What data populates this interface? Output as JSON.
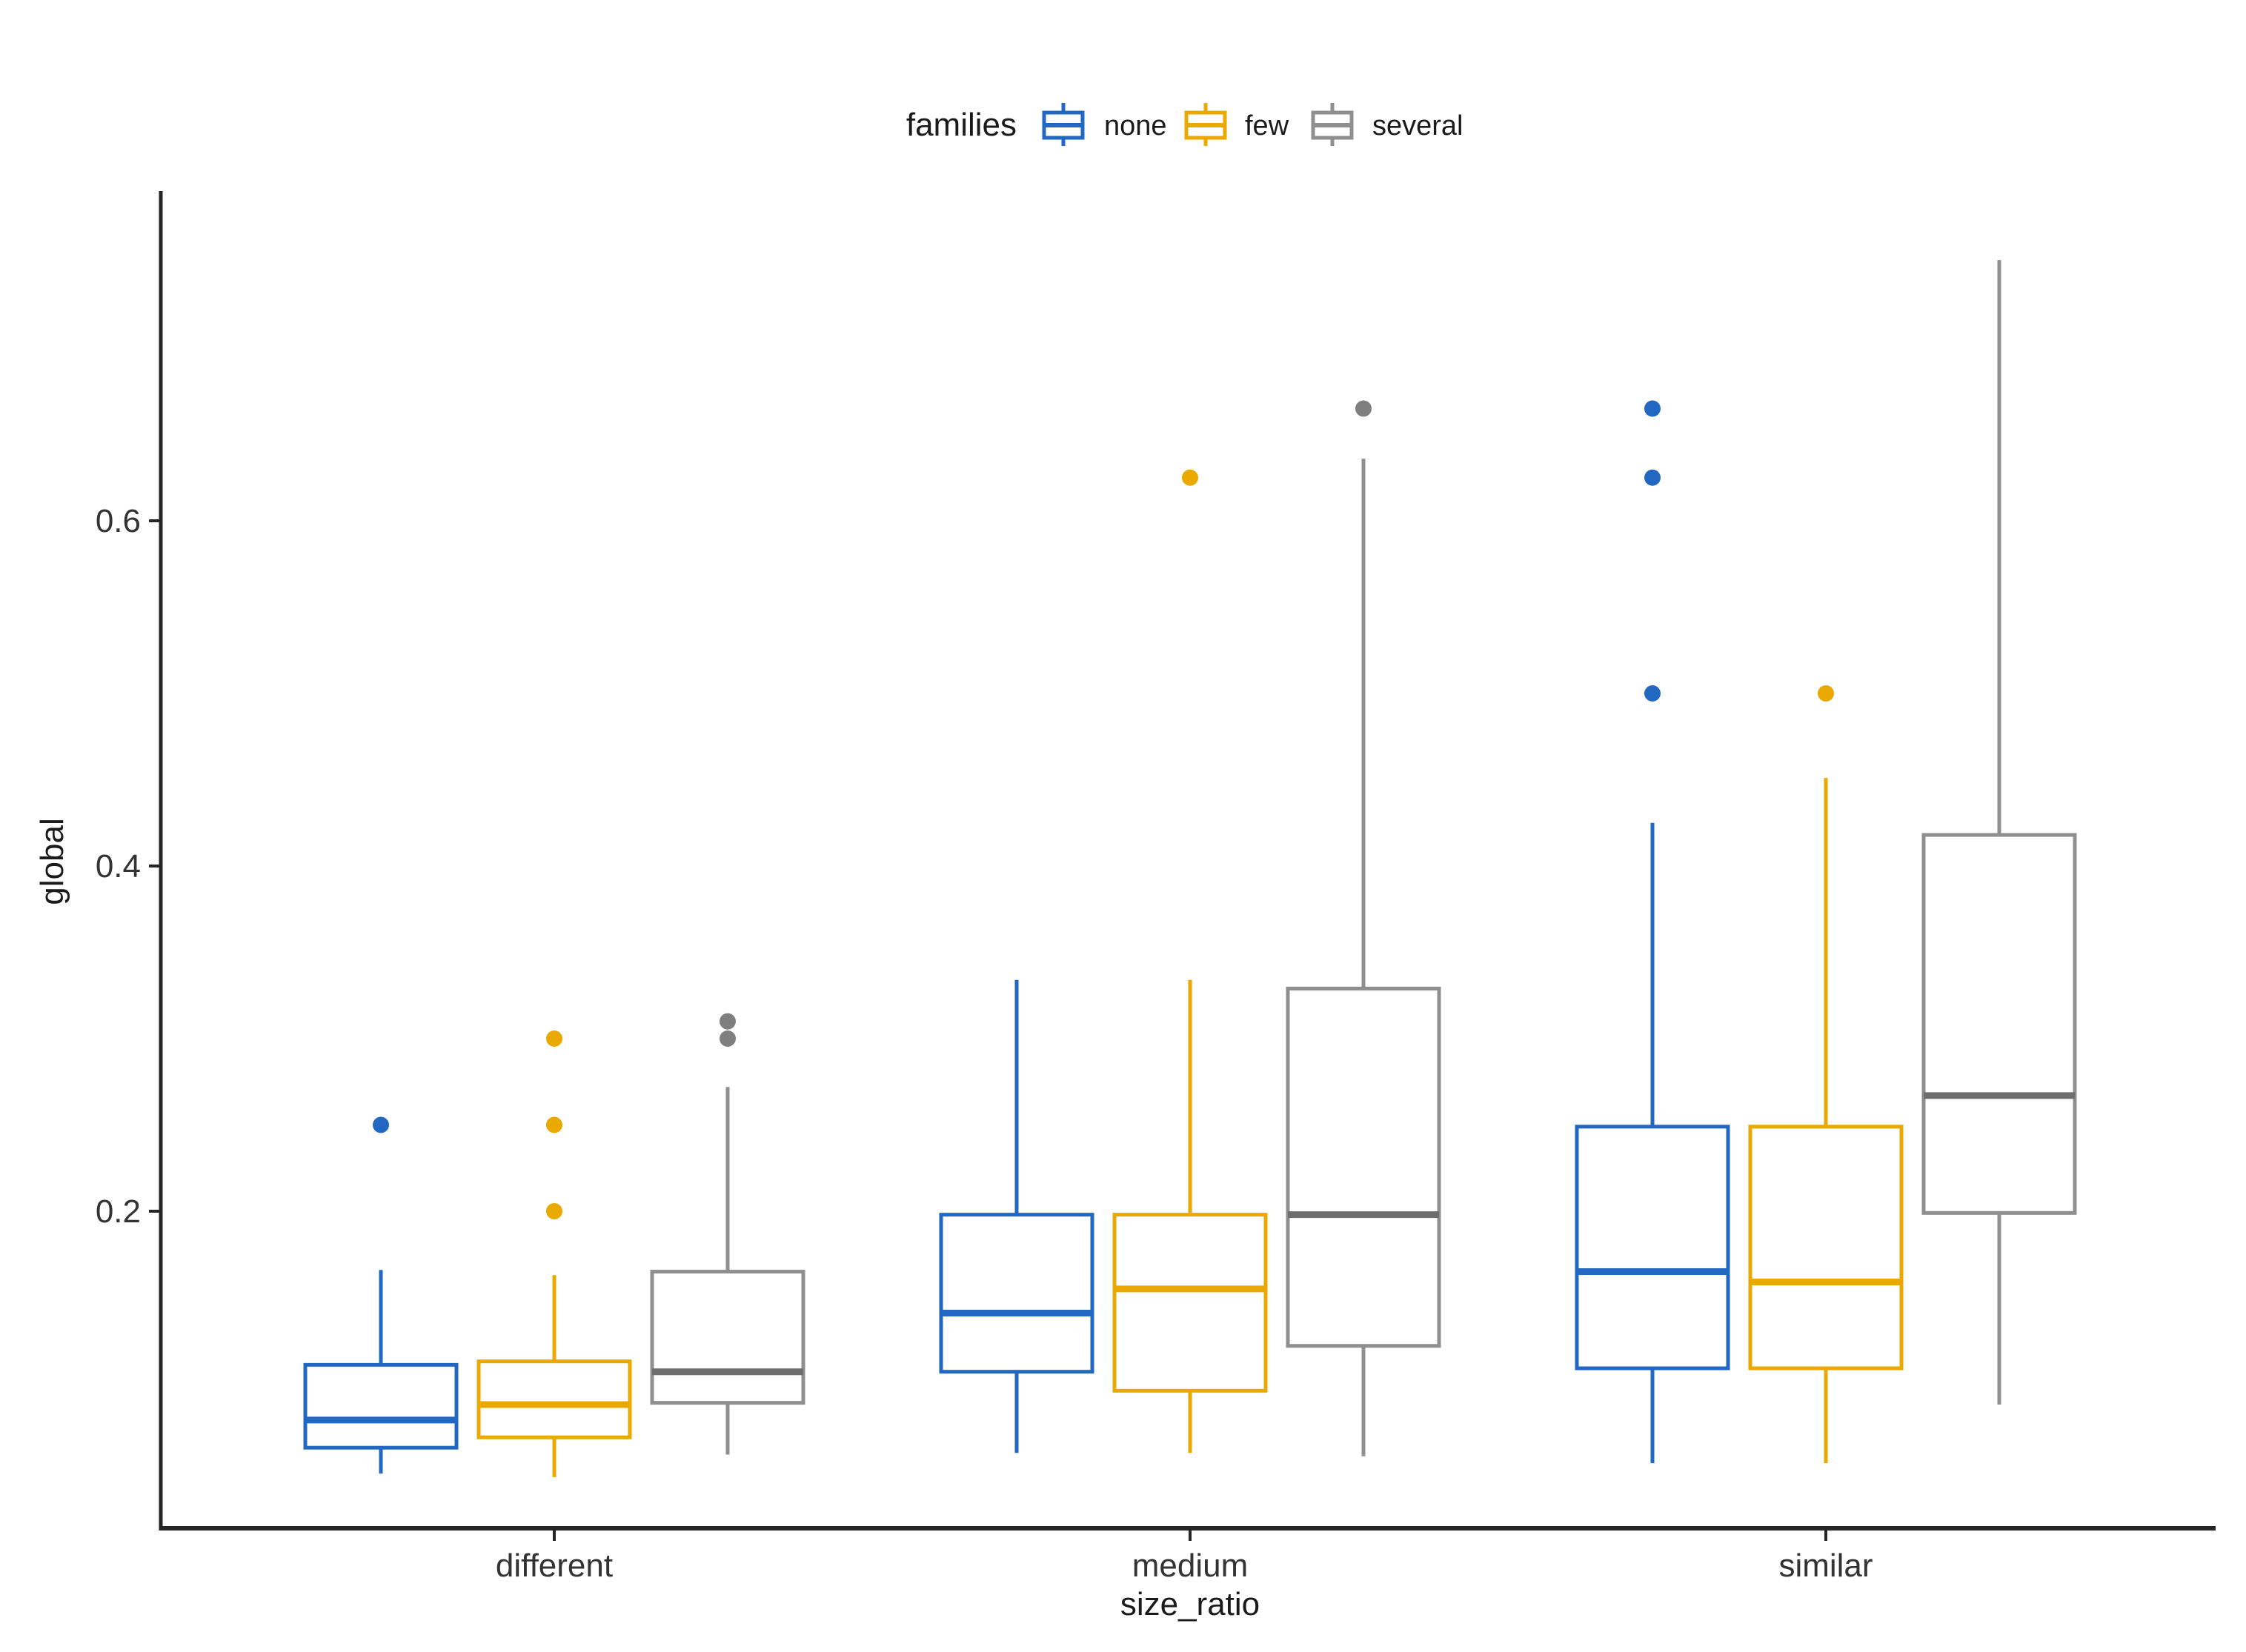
{
  "chart_data": {
    "type": "boxplot",
    "orientation": "vertical",
    "xlabel": "size_ratio",
    "ylabel": "global",
    "categories": [
      "different",
      "medium",
      "similar"
    ],
    "y_axis": {
      "tick_values": [
        0.2,
        0.4,
        0.6
      ],
      "tick_labels": [
        "0.2",
        "0.4",
        "0.6"
      ],
      "range": [
        0.016,
        0.79
      ],
      "grid": false
    },
    "legend": {
      "title": "families",
      "position": "top",
      "items": [
        {
          "label": "none",
          "color": "#2268C2"
        },
        {
          "label": "few",
          "color": "#E9A900"
        },
        {
          "label": "several",
          "color": "#8F8F8F"
        }
      ]
    },
    "series": [
      {
        "name": "none",
        "color": "#2268C2",
        "median_color": "#2268C2",
        "outlier_color": "#2268C2",
        "boxes": [
          {
            "category": "different",
            "whisker_low": 0.048,
            "q1": 0.063,
            "median": 0.079,
            "q3": 0.111,
            "whisker_high": 0.166,
            "outliers": [
              0.25
            ]
          },
          {
            "category": "medium",
            "whisker_low": 0.06,
            "q1": 0.107,
            "median": 0.141,
            "q3": 0.198,
            "whisker_high": 0.334,
            "outliers": []
          },
          {
            "category": "similar",
            "whisker_low": 0.054,
            "q1": 0.109,
            "median": 0.165,
            "q3": 0.249,
            "whisker_high": 0.425,
            "outliers": [
              0.5,
              0.625,
              0.665
            ]
          }
        ]
      },
      {
        "name": "few",
        "color": "#E9A900",
        "median_color": "#E9A900",
        "outlier_color": "#E9A900",
        "boxes": [
          {
            "category": "different",
            "whisker_low": 0.046,
            "q1": 0.069,
            "median": 0.088,
            "q3": 0.113,
            "whisker_high": 0.163,
            "outliers": [
              0.2,
              0.25,
              0.3
            ]
          },
          {
            "category": "medium",
            "whisker_low": 0.06,
            "q1": 0.096,
            "median": 0.155,
            "q3": 0.198,
            "whisker_high": 0.334,
            "outliers": [
              0.625
            ]
          },
          {
            "category": "similar",
            "whisker_low": 0.054,
            "q1": 0.109,
            "median": 0.159,
            "q3": 0.249,
            "whisker_high": 0.451,
            "outliers": [
              0.5
            ]
          }
        ]
      },
      {
        "name": "several",
        "color": "#8F8F8F",
        "median_color": "#6E6E6E",
        "outlier_color": "#7F7F7F",
        "boxes": [
          {
            "category": "different",
            "whisker_low": 0.059,
            "q1": 0.089,
            "median": 0.107,
            "q3": 0.165,
            "whisker_high": 0.272,
            "outliers": [
              0.3,
              0.31
            ]
          },
          {
            "category": "medium",
            "whisker_low": 0.058,
            "q1": 0.122,
            "median": 0.198,
            "q3": 0.329,
            "whisker_high": 0.636,
            "outliers": [
              0.665
            ]
          },
          {
            "category": "similar",
            "whisker_low": 0.088,
            "q1": 0.199,
            "median": 0.267,
            "q3": 0.418,
            "whisker_high": 0.751,
            "outliers": []
          }
        ]
      }
    ]
  }
}
